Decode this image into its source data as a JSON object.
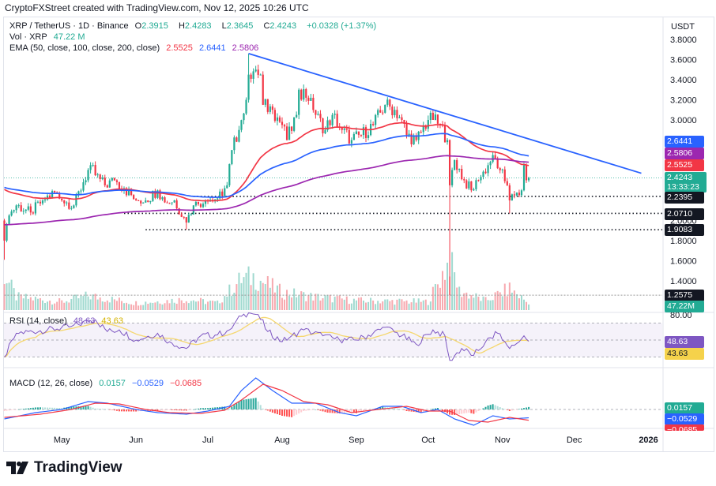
{
  "caption": "CryptoFXStreet created with TradingView.com, Nov 12, 2025 10:26 UTC",
  "currency": "USDT",
  "legend": {
    "symbol": "XRP / TetherUS · 1D · Binance",
    "o_label": "O",
    "o": "2.3915",
    "h_label": "H",
    "h": "2.4283",
    "l_label": "L",
    "l": "2.3645",
    "c_label": "C",
    "c": "2.4243",
    "change": "+0.0328 (+1.37%)",
    "vol_label": "Vol · XRP",
    "vol": "47.22 M",
    "ema_label": "EMA (50, close, 100, close, 200, close)",
    "ema50": "2.5525",
    "ema100": "2.6441",
    "ema200": "2.5806",
    "rsi_label": "RSI (14, close)",
    "rsi": "48.63",
    "rsi_ma": "43.63",
    "macd_label": "MACD (12, 26, close)",
    "macd_hist": "0.0157",
    "macd": "−0.0529",
    "macd_signal": "−0.0685"
  },
  "tags": {
    "ema100": "2.6441",
    "ema200": "2.5806",
    "ema50": "2.5525",
    "price": "2.4243",
    "countdown": "13:33:23",
    "s1": "2.2395",
    "s2": "2.0710",
    "s3": "1.9083",
    "s4": "1.2575",
    "volume": "47.22M",
    "rsi": "48.63",
    "rsi_ma": "43.63",
    "macd_hist": "0.0157",
    "macd": "−0.0529",
    "macd_signal": "−0.0685"
  },
  "logo_text": "TradingView",
  "colors": {
    "up": "#22ab94",
    "down": "#f23645",
    "ema50": "#f23645",
    "ema100": "#2962ff",
    "ema200": "#9c27b0",
    "trend": "#2962ff",
    "rsi": "#7e57c2",
    "rsi_ma": "#f5d76e"
  },
  "chart_data": [
    {
      "type": "candlestick",
      "title": "XRP / TetherUS · 1D · Binance",
      "ylim": [
        1.2,
        3.8
      ],
      "yticks": [
        "3.8000",
        "3.6000",
        "3.4000",
        "3.2000",
        "3.0000",
        "2.0000",
        "1.8000",
        "1.6000",
        "1.4000"
      ],
      "xticks": [
        "May",
        "Jun",
        "Jul",
        "Aug",
        "Sep",
        "Oct",
        "Nov",
        "Dec",
        "2026"
      ],
      "xtick_dates": [
        "2025-05-01",
        "2025-06-01",
        "2025-07-01",
        "2025-08-01",
        "2025-09-01",
        "2025-10-01",
        "2025-11-01",
        "2025-12-01",
        "2026-01-01"
      ],
      "close_samples": [
        [
          "2025-04-07",
          1.8
        ],
        [
          "2025-04-09",
          2.05
        ],
        [
          "2025-04-12",
          2.15
        ],
        [
          "2025-04-18",
          2.08
        ],
        [
          "2025-04-23",
          2.2
        ],
        [
          "2025-04-28",
          2.28
        ],
        [
          "2025-05-01",
          2.2
        ],
        [
          "2025-05-06",
          2.15
        ],
        [
          "2025-05-10",
          2.38
        ],
        [
          "2025-05-13",
          2.55
        ],
        [
          "2025-05-15",
          2.45
        ],
        [
          "2025-05-19",
          2.35
        ],
        [
          "2025-05-23",
          2.4
        ],
        [
          "2025-05-27",
          2.32
        ],
        [
          "2025-06-01",
          2.2
        ],
        [
          "2025-06-05",
          2.2
        ],
        [
          "2025-06-10",
          2.3
        ],
        [
          "2025-06-13",
          2.18
        ],
        [
          "2025-06-17",
          2.2
        ],
        [
          "2025-06-22",
          1.98
        ],
        [
          "2025-06-25",
          2.15
        ],
        [
          "2025-06-30",
          2.2
        ],
        [
          "2025-07-05",
          2.22
        ],
        [
          "2025-07-09",
          2.35
        ],
        [
          "2025-07-11",
          2.7
        ],
        [
          "2025-07-14",
          2.9
        ],
        [
          "2025-07-17",
          3.2
        ],
        [
          "2025-07-18",
          3.45
        ],
        [
          "2025-07-21",
          3.5
        ],
        [
          "2025-07-23",
          3.45
        ],
        [
          "2025-07-24",
          3.15
        ],
        [
          "2025-07-28",
          3.1
        ],
        [
          "2025-08-01",
          2.95
        ],
        [
          "2025-08-03",
          2.8
        ],
        [
          "2025-08-07",
          3.05
        ],
        [
          "2025-08-08",
          3.3
        ],
        [
          "2025-08-13",
          3.22
        ],
        [
          "2025-08-15",
          3.05
        ],
        [
          "2025-08-19",
          2.9
        ],
        [
          "2025-08-22",
          3.05
        ],
        [
          "2025-08-26",
          2.9
        ],
        [
          "2025-08-30",
          2.8
        ],
        [
          "2025-09-03",
          2.85
        ],
        [
          "2025-09-08",
          2.95
        ],
        [
          "2025-09-13",
          3.15
        ],
        [
          "2025-09-17",
          3.1
        ],
        [
          "2025-09-20",
          3.0
        ],
        [
          "2025-09-22",
          2.85
        ],
        [
          "2025-09-26",
          2.8
        ],
        [
          "2025-10-01",
          3.0
        ],
        [
          "2025-10-03",
          3.0
        ],
        [
          "2025-10-06",
          2.95
        ],
        [
          "2025-10-09",
          2.8
        ],
        [
          "2025-10-10",
          2.35
        ],
        [
          "2025-10-12",
          2.6
        ],
        [
          "2025-10-16",
          2.4
        ],
        [
          "2025-10-19",
          2.3
        ],
        [
          "2025-10-22",
          2.4
        ],
        [
          "2025-10-26",
          2.55
        ],
        [
          "2025-10-28",
          2.65
        ],
        [
          "2025-10-31",
          2.5
        ],
        [
          "2025-11-03",
          2.35
        ],
        [
          "2025-11-04",
          2.2
        ],
        [
          "2025-11-06",
          2.25
        ],
        [
          "2025-11-09",
          2.3
        ],
        [
          "2025-11-10",
          2.55
        ],
        [
          "2025-11-11",
          2.4
        ],
        [
          "2025-11-12",
          2.4243
        ]
      ],
      "notable_lows": [
        [
          "2025-04-07",
          1.61
        ],
        [
          "2025-06-22",
          1.91
        ],
        [
          "2025-10-10",
          1.2575
        ],
        [
          "2025-11-04",
          2.071
        ]
      ],
      "notable_highs": [
        [
          "2025-07-18",
          3.66
        ]
      ],
      "ema_last": {
        "ema50": 2.5525,
        "ema100": 2.6441,
        "ema200": 2.5806
      },
      "trendline": [
        [
          "2025-07-18",
          3.66
        ],
        [
          "2025-12-29",
          2.47
        ]
      ],
      "horizontal_levels": [
        2.2395,
        2.071,
        1.9083,
        1.2575
      ],
      "last_price": 2.4243,
      "volume_m_samples": [
        [
          "2025-04-07",
          300
        ],
        [
          "2025-04-12",
          110
        ],
        [
          "2025-05-01",
          70
        ],
        [
          "2025-05-12",
          120
        ],
        [
          "2025-06-01",
          60
        ],
        [
          "2025-06-22",
          90
        ],
        [
          "2025-07-05",
          60
        ],
        [
          "2025-07-15",
          260
        ],
        [
          "2025-07-20",
          280
        ],
        [
          "2025-08-01",
          150
        ],
        [
          "2025-08-15",
          110
        ],
        [
          "2025-09-01",
          80
        ],
        [
          "2025-10-01",
          70
        ],
        [
          "2025-10-10",
          420
        ],
        [
          "2025-10-14",
          160
        ],
        [
          "2025-10-25",
          80
        ],
        [
          "2025-11-04",
          180
        ],
        [
          "2025-11-10",
          90
        ],
        [
          "2025-11-12",
          47.22
        ]
      ]
    },
    {
      "type": "line",
      "title": "RSI (14, close)",
      "levels": [
        70,
        50,
        30
      ],
      "ytick": "80.00",
      "rsi_samples": [
        [
          "2025-04-07",
          30
        ],
        [
          "2025-04-12",
          58
        ],
        [
          "2025-04-25",
          62
        ],
        [
          "2025-05-05",
          66
        ],
        [
          "2025-05-12",
          72
        ],
        [
          "2025-05-15",
          74
        ],
        [
          "2025-05-20",
          60
        ],
        [
          "2025-05-25",
          62
        ],
        [
          "2025-06-01",
          50
        ],
        [
          "2025-06-10",
          58
        ],
        [
          "2025-06-15",
          48
        ],
        [
          "2025-06-22",
          40
        ],
        [
          "2025-06-28",
          55
        ],
        [
          "2025-07-05",
          56
        ],
        [
          "2025-07-10",
          62
        ],
        [
          "2025-07-15",
          78
        ],
        [
          "2025-07-18",
          82
        ],
        [
          "2025-07-22",
          80
        ],
        [
          "2025-07-26",
          60
        ],
        [
          "2025-08-01",
          48
        ],
        [
          "2025-08-05",
          55
        ],
        [
          "2025-08-10",
          62
        ],
        [
          "2025-08-18",
          55
        ],
        [
          "2025-08-25",
          50
        ],
        [
          "2025-09-01",
          50
        ],
        [
          "2025-09-08",
          58
        ],
        [
          "2025-09-13",
          65
        ],
        [
          "2025-09-20",
          55
        ],
        [
          "2025-09-26",
          45
        ],
        [
          "2025-10-03",
          62
        ],
        [
          "2025-10-08",
          55
        ],
        [
          "2025-10-10",
          26
        ],
        [
          "2025-10-15",
          40
        ],
        [
          "2025-10-20",
          32
        ],
        [
          "2025-10-25",
          48
        ],
        [
          "2025-10-30",
          58
        ],
        [
          "2025-11-04",
          40
        ],
        [
          "2025-11-08",
          48
        ],
        [
          "2025-11-10",
          55
        ],
        [
          "2025-11-12",
          48.63
        ]
      ],
      "rsi_last": 48.63,
      "rsi_ma_last": 43.63
    },
    {
      "type": "line",
      "title": "MACD (12, 26, close)",
      "macd_samples": [
        [
          "2025-04-07",
          -0.06
        ],
        [
          "2025-04-20",
          -0.02
        ],
        [
          "2025-05-01",
          0.0
        ],
        [
          "2025-05-12",
          0.05
        ],
        [
          "2025-05-20",
          0.04
        ],
        [
          "2025-06-01",
          0.0
        ],
        [
          "2025-06-10",
          -0.02
        ],
        [
          "2025-06-22",
          -0.03
        ],
        [
          "2025-07-01",
          -0.01
        ],
        [
          "2025-07-10",
          0.02
        ],
        [
          "2025-07-15",
          0.12
        ],
        [
          "2025-07-21",
          0.2
        ],
        [
          "2025-07-28",
          0.12
        ],
        [
          "2025-08-05",
          0.04
        ],
        [
          "2025-08-15",
          0.04
        ],
        [
          "2025-08-25",
          -0.02
        ],
        [
          "2025-09-01",
          -0.04
        ],
        [
          "2025-09-12",
          0.02
        ],
        [
          "2025-09-20",
          0.02
        ],
        [
          "2025-09-28",
          -0.02
        ],
        [
          "2025-10-05",
          0.0
        ],
        [
          "2025-10-12",
          -0.06
        ],
        [
          "2025-10-20",
          -0.1
        ],
        [
          "2025-10-28",
          -0.04
        ],
        [
          "2025-11-04",
          -0.06
        ],
        [
          "2025-11-12",
          -0.0529
        ]
      ],
      "signal_samples": [
        [
          "2025-04-07",
          -0.05
        ],
        [
          "2025-04-22",
          -0.03
        ],
        [
          "2025-05-05",
          0.0
        ],
        [
          "2025-05-15",
          0.04
        ],
        [
          "2025-05-25",
          0.035
        ],
        [
          "2025-06-05",
          0.0
        ],
        [
          "2025-06-15",
          -0.02
        ],
        [
          "2025-06-28",
          -0.025
        ],
        [
          "2025-07-08",
          -0.005
        ],
        [
          "2025-07-15",
          0.06
        ],
        [
          "2025-07-24",
          0.16
        ],
        [
          "2025-08-01",
          0.12
        ],
        [
          "2025-08-10",
          0.05
        ],
        [
          "2025-08-20",
          0.03
        ],
        [
          "2025-08-30",
          -0.02
        ],
        [
          "2025-09-10",
          0.0
        ],
        [
          "2025-09-22",
          0.02
        ],
        [
          "2025-10-01",
          -0.01
        ],
        [
          "2025-10-10",
          -0.01
        ],
        [
          "2025-10-18",
          -0.07
        ],
        [
          "2025-10-26",
          -0.08
        ],
        [
          "2025-11-04",
          -0.05
        ],
        [
          "2025-11-12",
          -0.0685
        ]
      ],
      "hist_last": 0.0157
    }
  ]
}
